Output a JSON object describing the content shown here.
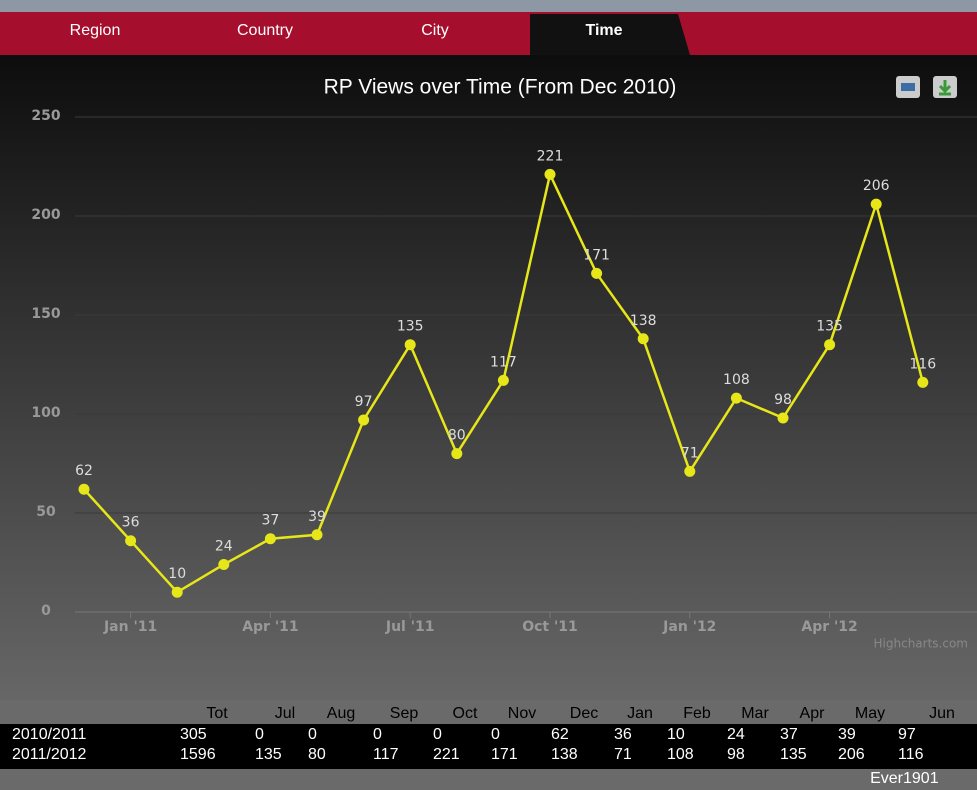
{
  "tabs": [
    "Region",
    "Country",
    "City",
    "Time"
  ],
  "chart_data": {
    "type": "line",
    "title": "RP Views over Time (From Dec 2010)",
    "categories": [
      null,
      "Jan '11",
      null,
      null,
      "Apr '11",
      null,
      null,
      "Jul '11",
      null,
      null,
      "Oct '11",
      null,
      null,
      "Jan '12",
      null,
      null,
      "Apr '12",
      null,
      null
    ],
    "values": [
      62,
      36,
      10,
      24,
      37,
      39,
      97,
      135,
      80,
      117,
      221,
      171,
      138,
      71,
      108,
      98,
      135,
      206,
      116
    ],
    "color": "#e6e619",
    "ylim": [
      0,
      250
    ],
    "yticks": [
      0,
      50,
      100,
      150,
      200,
      250
    ],
    "grid": true,
    "credit": "Highcharts.com"
  },
  "table": {
    "header": [
      "Tot",
      "Jul",
      "Aug",
      "Sep",
      "Oct",
      "Nov",
      "Dec",
      "Jan",
      "Feb",
      "Mar",
      "Apr",
      "May",
      "Jun"
    ],
    "rows": [
      {
        "label": "2010/2011",
        "values": [
          305,
          0,
          0,
          0,
          0,
          0,
          62,
          36,
          10,
          24,
          37,
          39,
          97
        ]
      },
      {
        "label": "2011/2012",
        "values": [
          1596,
          135,
          80,
          117,
          221,
          171,
          138,
          71,
          108,
          98,
          135,
          206,
          116
        ]
      }
    ],
    "footer": {
      "label": "Ever",
      "value": 1901
    }
  }
}
